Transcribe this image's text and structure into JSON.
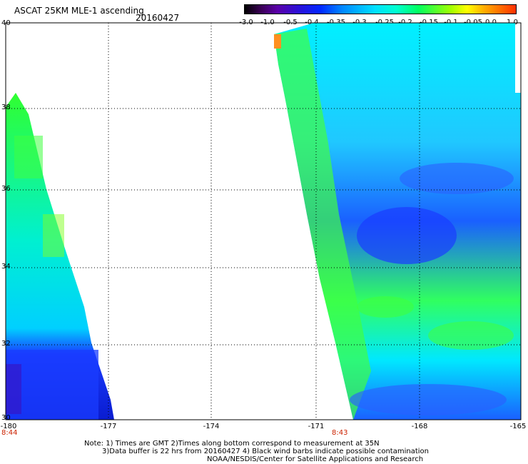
{
  "header": {
    "title": "ASCAT 25KM MLE-1 ascending",
    "date": "20160427"
  },
  "colorbar": {
    "ticks": [
      "-3.0",
      "-1.0",
      "-0.5",
      "-0.4",
      "-0.35",
      "-0.3",
      "-0.25",
      "-0.2",
      "-0.15",
      "-0.1",
      "-0.05",
      "0.0",
      "1.0"
    ]
  },
  "axes": {
    "lat_labels": [
      "40",
      "38",
      "36",
      "34",
      "32",
      "30"
    ],
    "lon_labels": [
      "-180",
      "-177",
      "-174",
      "-171",
      "-168",
      "-165"
    ]
  },
  "times": {
    "left": "8:44",
    "right": "8:43"
  },
  "notes": {
    "line1": "Note: 1) Times are GMT 2)Times along bottom correspond to measurement at 35N",
    "line2": "3)Data buffer is 22 hrs from 20160427 4) Black wind barbs indicate possible contamination",
    "line3": "NOAA/NESDIS/Center for Satellite Applications and Research"
  },
  "colors": {
    "swath_low": "#1a3cff",
    "swath_mid": "#00f0ff",
    "swath_high": "#30ff30"
  }
}
